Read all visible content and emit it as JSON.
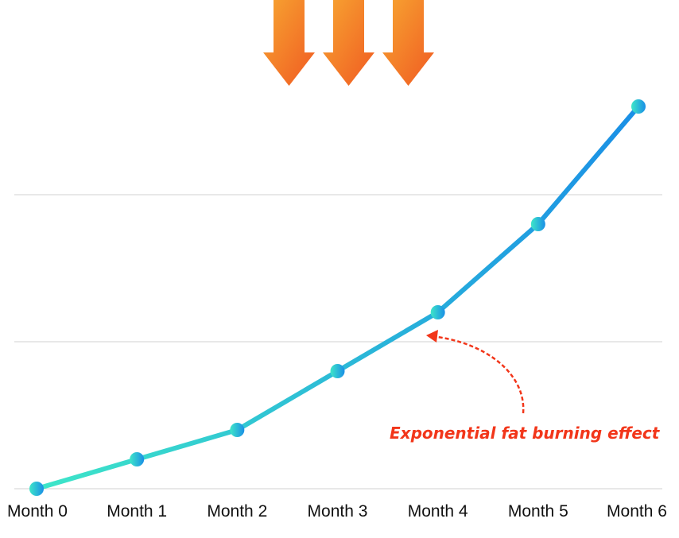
{
  "colors": {
    "line_start": "#3ee6c8",
    "line_end": "#1a8fe6",
    "grid": "#d9d9d9",
    "arrow_light": "#f7a531",
    "arrow_dark": "#f05a22",
    "annotation": "#f2361a"
  },
  "icons": [
    "down-arrow-icon",
    "down-arrow-icon",
    "down-arrow-icon"
  ],
  "chart_data": {
    "type": "line",
    "categories": [
      "Month 0",
      "Month 1",
      "Month 2",
      "Month 3",
      "Month 4",
      "Month 5",
      "Month 6"
    ],
    "series": [
      {
        "values": [
          0,
          0.2,
          0.4,
          0.8,
          1.2,
          1.8,
          2.6
        ]
      }
    ],
    "ylim": [
      0,
      2.6
    ],
    "grid": true,
    "annotation": {
      "text": "Exponential fat burning effect",
      "points_to": "Month 4"
    }
  }
}
